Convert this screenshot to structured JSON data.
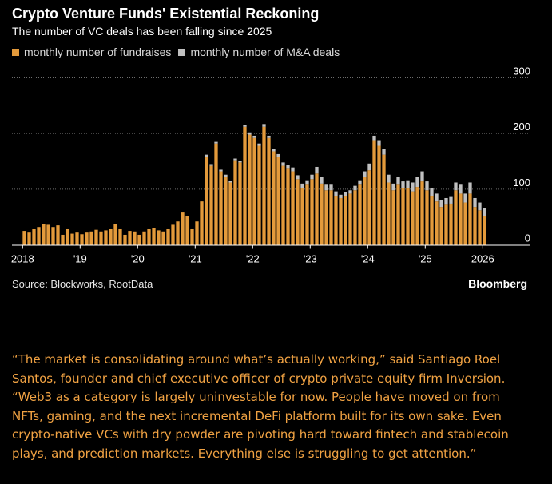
{
  "header": {
    "title": "Crypto Venture Funds' Existential Reckoning",
    "subtitle": "The number of VC deals has been falling since 2025"
  },
  "legend": {
    "fundraises_label": "monthly number of fundraises",
    "ma_label": "monthly number of M&A deals"
  },
  "colors": {
    "fundraises": "#e39a3b",
    "ma": "#c0c0c0",
    "grid": "#6e6e6e",
    "axis_text": "#ffffff"
  },
  "chart_data": {
    "type": "bar",
    "stacked": true,
    "title": "Crypto Venture Funds' Existential Reckoning",
    "subtitle": "The number of VC deals has been falling since 2025",
    "ylim": [
      0,
      300
    ],
    "y_ticks": [
      "0",
      "100",
      "200",
      "300"
    ],
    "grid": true,
    "y_axis_side": "right",
    "x_ticks": [
      {
        "label": "2018",
        "month_index": 0
      },
      {
        "label": "'19",
        "month_index": 12
      },
      {
        "label": "'20",
        "month_index": 24
      },
      {
        "label": "'21",
        "month_index": 36
      },
      {
        "label": "'22",
        "month_index": 48
      },
      {
        "label": "'23",
        "month_index": 60
      },
      {
        "label": "'24",
        "month_index": 72
      },
      {
        "label": "'25",
        "month_index": 84
      },
      {
        "label": "2026",
        "month_index": 96
      }
    ],
    "series": [
      {
        "name": "monthly number of fundraises",
        "values": [
          25,
          22,
          28,
          32,
          38,
          36,
          32,
          35,
          18,
          28,
          20,
          22,
          19,
          22,
          24,
          27,
          24,
          26,
          28,
          38,
          28,
          18,
          25,
          24,
          18,
          24,
          28,
          30,
          26,
          24,
          28,
          36,
          42,
          58,
          52,
          28,
          42,
          78,
          158,
          142,
          182,
          132,
          122,
          112,
          152,
          148,
          212,
          198,
          192,
          178,
          212,
          192,
          168,
          158,
          142,
          138,
          132,
          118,
          102,
          108,
          118,
          128,
          110,
          98,
          98,
          88,
          84,
          88,
          92,
          98,
          108,
          122,
          134,
          188,
          178,
          162,
          112,
          98,
          108,
          102,
          102,
          96,
          104,
          114,
          98,
          88,
          78,
          68,
          72,
          74,
          98,
          92,
          76,
          92,
          68,
          62,
          52
        ],
        "color": "#e39a3b"
      },
      {
        "name": "monthly number of M&A deals",
        "values": [
          0,
          0,
          0,
          0,
          0,
          0,
          0,
          0,
          0,
          0,
          0,
          0,
          0,
          0,
          0,
          0,
          0,
          0,
          0,
          0,
          0,
          0,
          0,
          0,
          0,
          0,
          0,
          0,
          0,
          0,
          0,
          0,
          0,
          0,
          0,
          0,
          0,
          0,
          4,
          3,
          3,
          3,
          4,
          3,
          3,
          3,
          4,
          4,
          4,
          4,
          5,
          4,
          4,
          5,
          6,
          6,
          7,
          7,
          8,
          8,
          8,
          12,
          12,
          10,
          10,
          8,
          6,
          6,
          6,
          8,
          8,
          10,
          12,
          8,
          10,
          10,
          14,
          12,
          14,
          12,
          14,
          16,
          18,
          18,
          16,
          14,
          14,
          12,
          12,
          12,
          14,
          16,
          16,
          20,
          16,
          14,
          14
        ],
        "color": "#c0c0c0"
      }
    ]
  },
  "footer": {
    "source": "Source: Blockworks, RootData",
    "brand": "Bloomberg"
  },
  "quote": "“The market is consolidating around what’s actually working,” said Santiago Roel Santos, founder and chief executive officer of crypto private equity firm Inversion. “Web3 as a category is largely uninvestable for now. People have moved on from NFTs, gaming, and the next incremental DeFi platform built for its own sake. Even crypto-native VCs with dry powder are pivoting hard toward fintech and stablecoin plays, and prediction markets. Everything else is struggling to get attention.”"
}
